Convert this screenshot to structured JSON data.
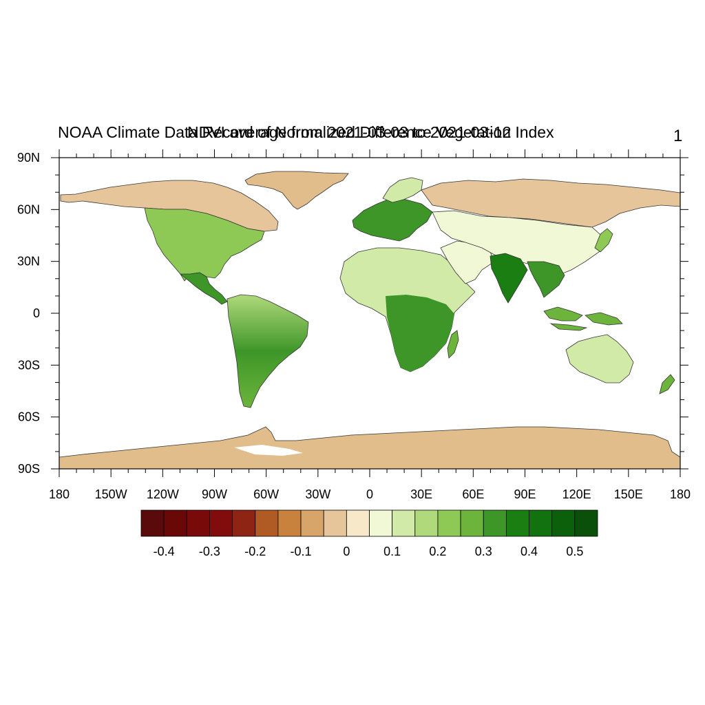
{
  "title_left": "NOAA Climate Data Record of Normalized Difference Vegetation Index",
  "title_center": "NDVI average from 2021-03-03 to 2021-03-12",
  "page_number": "1",
  "map": {
    "projection": "cylindrical-equidistant",
    "lon_range": [
      -180,
      180
    ],
    "lat_range": [
      -90,
      90
    ],
    "lat_labels": [
      "90N",
      "60N",
      "30N",
      "0",
      "30S",
      "60S",
      "90S"
    ],
    "lat_values": [
      90,
      60,
      30,
      0,
      -30,
      -60,
      -90
    ],
    "lon_labels": [
      "180",
      "150W",
      "120W",
      "90W",
      "60W",
      "30W",
      "0",
      "30E",
      "60E",
      "90E",
      "120E",
      "150E",
      "180"
    ],
    "lon_values": [
      -180,
      -150,
      -120,
      -90,
      -60,
      -30,
      0,
      30,
      60,
      90,
      120,
      150,
      180
    ],
    "ocean_color": "#ffffff",
    "coastline_color": "#000000"
  },
  "colorbar": {
    "colors": [
      "#5a0a0a",
      "#6a0808",
      "#780a0a",
      "#820c0c",
      "#8e2414",
      "#b05a24",
      "#c8823e",
      "#d7a46a",
      "#e6c59a",
      "#f6e8c8",
      "#f1f8d6",
      "#d2eaa8",
      "#b0d97c",
      "#8ec855",
      "#6cb43c",
      "#3e9628",
      "#1a7e12",
      "#127210",
      "#0c600c",
      "#0a500a"
    ],
    "labels": [
      "-0.4",
      "-0.3",
      "-0.2",
      "-0.1",
      "0",
      "0.1",
      "0.2",
      "0.3",
      "0.4",
      "0.5"
    ]
  }
}
